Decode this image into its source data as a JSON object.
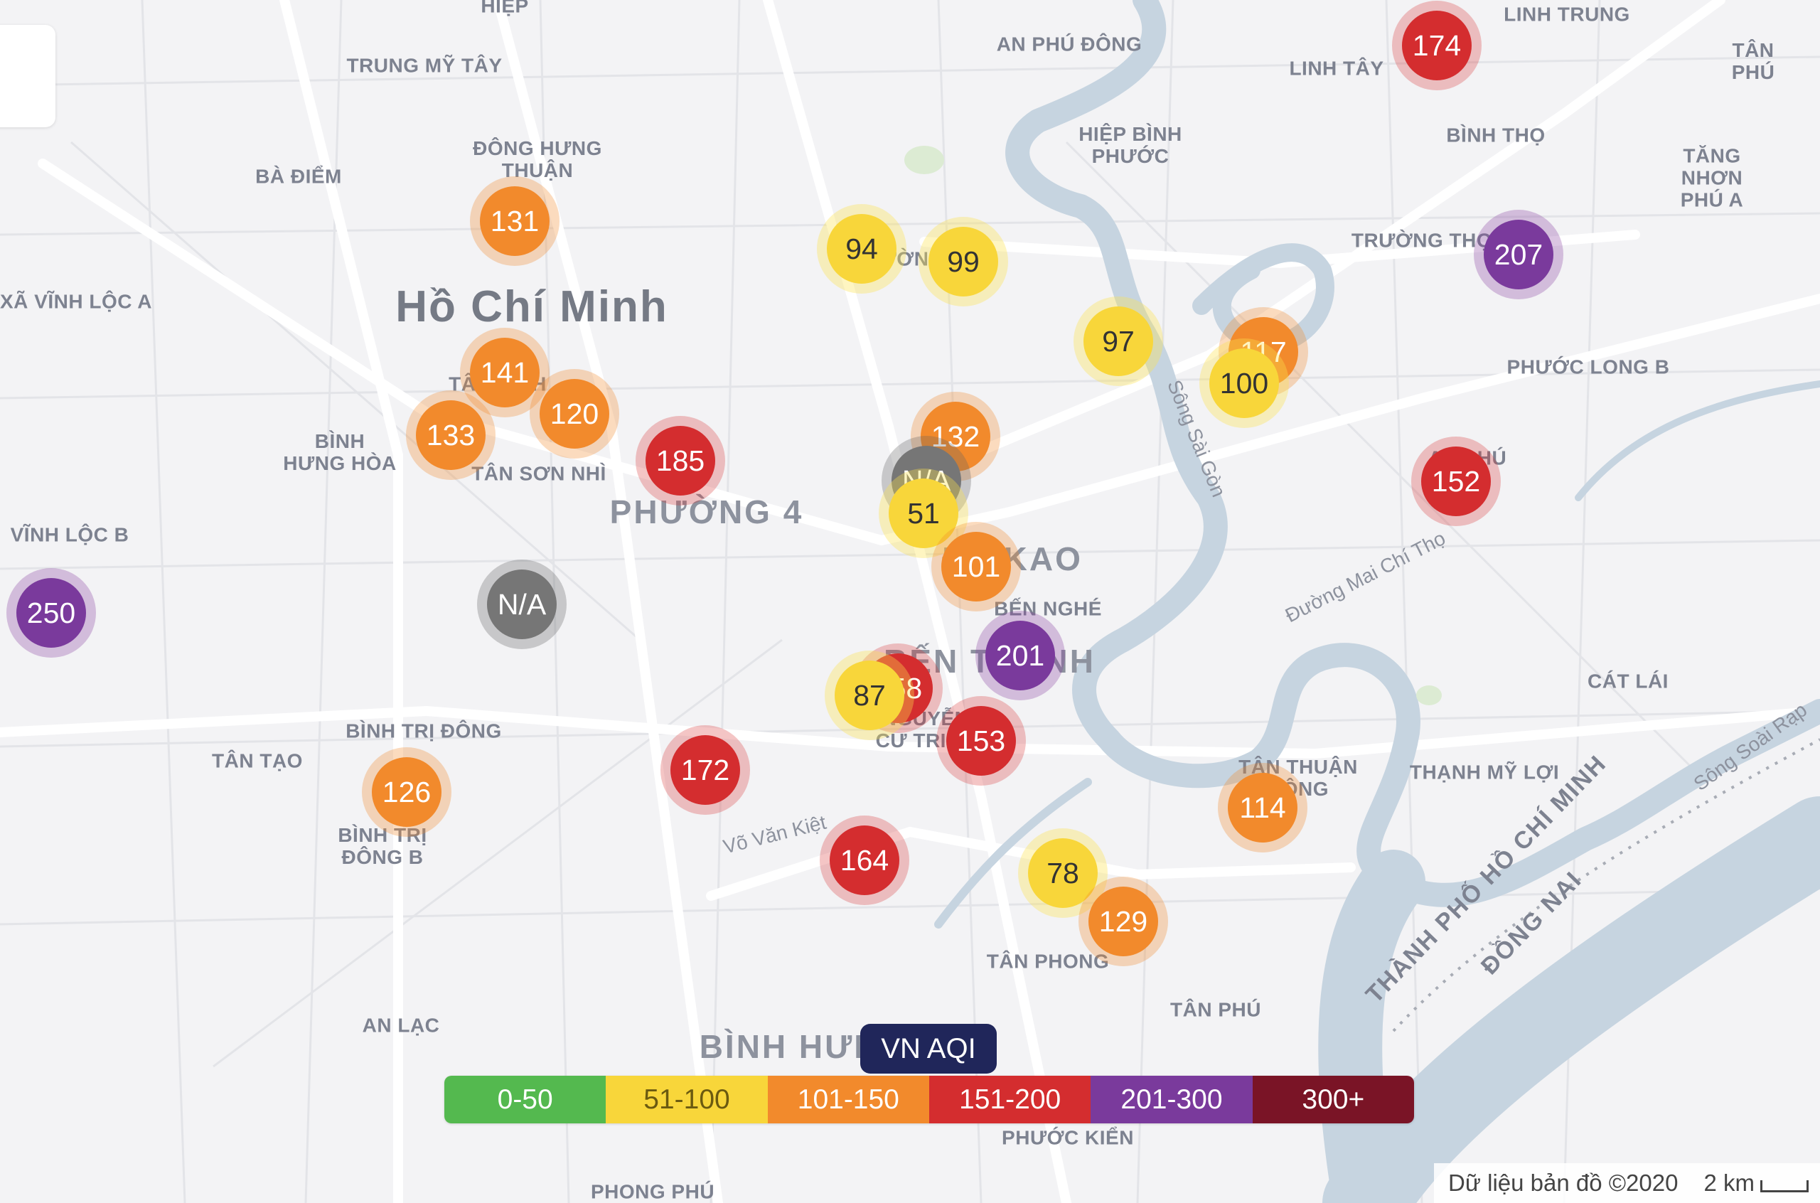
{
  "colors": {
    "water": "#c6d4e0",
    "road_main": "#ffffff",
    "road_minor": "#e3e4e8",
    "background": "#f3f3f5",
    "aqi_good": "#54b94f",
    "aqi_moderate": "#f8d63a",
    "aqi_sensitive": "#f28a2c",
    "aqi_unhealthy": "#d42d2f",
    "aqi_very_unhealthy": "#7a3a9c",
    "aqi_hazardous": "#7a1426",
    "aqi_na": "#767676"
  },
  "places": {
    "hiep": "HIỆP",
    "trung_my_tay": "TRUNG MỸ TÂY",
    "an_phu_dong": "AN PHÚ ĐÔNG",
    "linh_trung": "LINH TRUNG",
    "linh_tay": "LINH TÂY",
    "tan_phu_ne": "TÂN PHÚ",
    "ba_diem": "BÀ ĐIỂM",
    "dong_hung_thuan": "ĐÔNG HƯNG\nTHUẬN",
    "hiep_binh_phuoc": "HIỆP BÌNH\nPHƯỚC",
    "binh_tho": "BÌNH THỌ",
    "tang_nhon_phu_a": "TĂNG NHƠN\nPHÚ A",
    "truong_tho": "TRƯỜNG THỌ",
    "xa_vinh_loc_a": "XÃ VĨNH LỘC A",
    "ho_chi_minh": "Hồ Chí Minh",
    "phuoc_long_b": "PHƯỚC LONG B",
    "tan_binh": "TÂN BÌNH",
    "binh_hung_hoa": "BÌNH\nHƯNG HÒA",
    "tan_son_nhi": "TÂN SƠN NHÌ",
    "phuong_4": "PHƯỜNG 4",
    "an_phu": "AN PHÚ",
    "vinh_loc_b": "VĨNH LỘC B",
    "da_kao": "ĐA KAO",
    "ben_nghe": "BẾN NGHÉ",
    "ben_thanh": "BẾN THÀNH",
    "cat_lai": "CÁT LÁI",
    "binh_tri_dong": "BÌNH TRỊ ĐÔNG",
    "tan_tao": "TÂN TẠO",
    "nguyen_cu_trinh": "NGUYỄN\nCƯ TRINH",
    "tan_thuan_dong": "TÂN THUẬN\nĐÔNG",
    "thanh_my_loi": "THẠNH MỸ LỢI",
    "binh_tri_dong_b": "BÌNH TRỊ\nĐÔNG B",
    "tan_phong": "TÂN PHONG",
    "an_lac": "AN LẠC",
    "tan_phu_se": "TÂN PHÚ",
    "binh_hung": "BÌNH HƯNG",
    "phuoc_kien": "PHƯỚC KIỂN",
    "phong_phu": "PHONG PHÚ",
    "truong_tho_partial": "ƯỜN"
  },
  "roads": {
    "song_sai_gon": "Sông Sài Gòn",
    "duong_mai_chi_tho": "Đường Mai Chí Thọ",
    "vo_van_kiet": "Võ Văn Kiệt",
    "song_soai_rap": "Sông Soài Rạp"
  },
  "provinces": {
    "tp_hcm": "THÀNH PHỐ HỒ CHÍ MINH",
    "dong_nai": "ĐỒNG NAI"
  },
  "markers": [
    {
      "value": "174",
      "level": "red"
    },
    {
      "value": "131",
      "level": "orange"
    },
    {
      "value": "94",
      "level": "yellow"
    },
    {
      "value": "99",
      "level": "yellow"
    },
    {
      "value": "207",
      "level": "purple"
    },
    {
      "value": "97",
      "level": "yellow"
    },
    {
      "value": "117",
      "level": "orange"
    },
    {
      "value": "100",
      "level": "yellow"
    },
    {
      "value": "141",
      "level": "orange"
    },
    {
      "value": "120",
      "level": "orange"
    },
    {
      "value": "133",
      "level": "orange"
    },
    {
      "value": "185",
      "level": "red"
    },
    {
      "value": "132",
      "level": "orange"
    },
    {
      "value": "N/A",
      "level": "gray"
    },
    {
      "value": "51",
      "level": "yellow"
    },
    {
      "value": "152",
      "level": "red"
    },
    {
      "value": "101",
      "level": "orange"
    },
    {
      "value": "N/A",
      "level": "gray"
    },
    {
      "value": "250",
      "level": "purple"
    },
    {
      "value": "201",
      "level": "purple"
    },
    {
      "value": "158",
      "level": "red"
    },
    {
      "value": "87",
      "level": "yellow"
    },
    {
      "value": "153",
      "level": "red"
    },
    {
      "value": "172",
      "level": "red"
    },
    {
      "value": "126",
      "level": "orange"
    },
    {
      "value": "114",
      "level": "orange"
    },
    {
      "value": "164",
      "level": "red"
    },
    {
      "value": "78",
      "level": "yellow"
    },
    {
      "value": "129",
      "level": "orange"
    }
  ],
  "legend": {
    "title": "VN AQI",
    "ranges": [
      {
        "label": "0-50",
        "color": "#54b94f"
      },
      {
        "label": "51-100",
        "color": "#f8d63a"
      },
      {
        "label": "101-150",
        "color": "#f28a2c"
      },
      {
        "label": "151-200",
        "color": "#d42d2f"
      },
      {
        "label": "201-300",
        "color": "#7a3a9c"
      },
      {
        "label": "300+",
        "color": "#7a1426"
      }
    ]
  },
  "attribution": {
    "map_data": "Dữ liệu bản đồ ©2020",
    "scale_label": "2 km"
  }
}
